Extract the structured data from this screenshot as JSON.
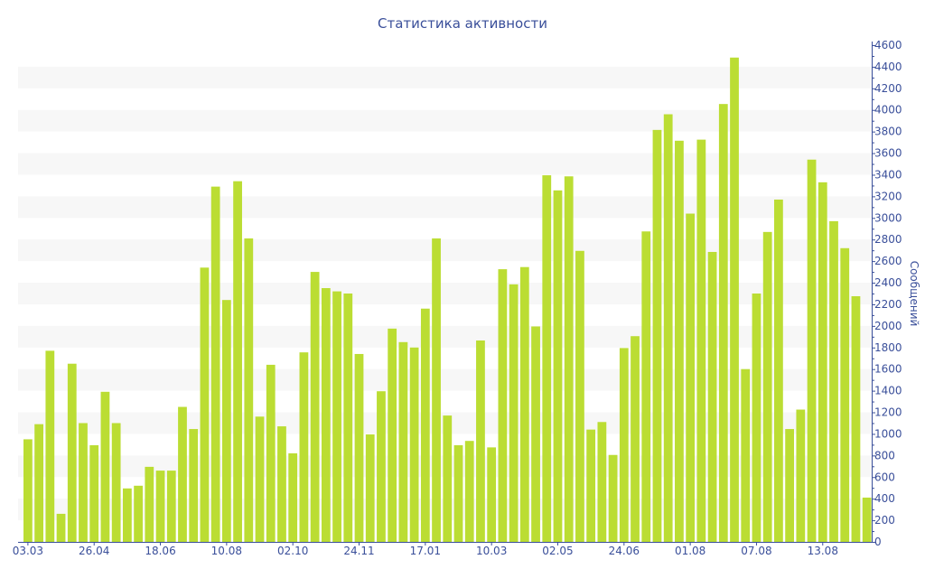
{
  "chart_data": {
    "type": "bar",
    "title": "Статистика активности",
    "xlabel": "",
    "ylabel": "Сообщений",
    "ylim": [
      0,
      4600
    ],
    "ytick_step": 200,
    "y_axis_side": "right",
    "grid": "alternating horizontal bands",
    "bar_color": "#bbdd33",
    "band_color": "#f7f7f7",
    "axis_color": "#3a4f9a",
    "x_tick_labels": [
      "03.03",
      "26.04",
      "18.06",
      "10.08",
      "02.10",
      "24.11",
      "17.01",
      "10.03",
      "02.05",
      "24.06",
      "01.08",
      "07.08",
      "13.08"
    ],
    "x_tick_every": 6,
    "values": [
      950,
      1090,
      1770,
      260,
      1650,
      1100,
      895,
      1390,
      1100,
      495,
      520,
      695,
      660,
      660,
      1250,
      1045,
      2540,
      3290,
      2240,
      3340,
      2810,
      1160,
      1640,
      1070,
      820,
      1755,
      2500,
      2350,
      2320,
      2300,
      1740,
      995,
      1395,
      1975,
      1850,
      1800,
      2160,
      2810,
      1170,
      895,
      935,
      1865,
      875,
      2525,
      2385,
      2545,
      1995,
      3395,
      3255,
      3385,
      2695,
      1040,
      1110,
      805,
      1795,
      1905,
      2875,
      3815,
      3960,
      3715,
      3040,
      3725,
      2685,
      4055,
      4485,
      1600,
      2300,
      2870,
      3170,
      1045,
      1225,
      3540,
      3330,
      2970,
      2720,
      2275,
      410
    ]
  }
}
